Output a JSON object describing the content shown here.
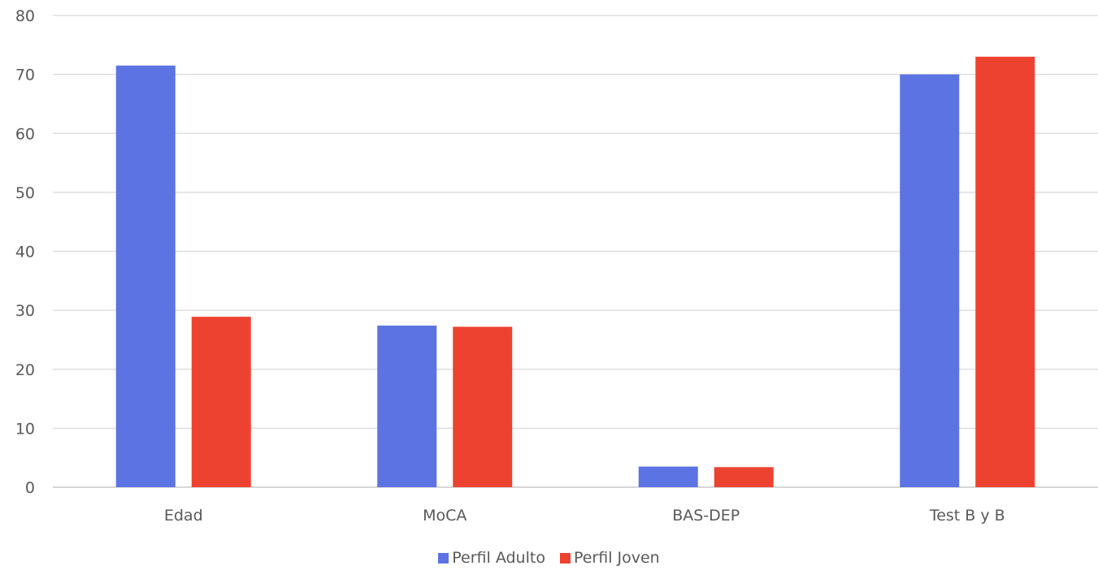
{
  "chart_data": {
    "type": "bar",
    "title": "",
    "xlabel": "",
    "ylabel": "",
    "categories": [
      "Edad",
      "MoCA",
      "BAS-DEP",
      "Test B y B"
    ],
    "series": [
      {
        "name": "Perfil Adulto",
        "color": "#5B73E3",
        "values": [
          71.5,
          27.4,
          3.5,
          70.0
        ]
      },
      {
        "name": "Perfil Joven",
        "color": "#EE4230",
        "values": [
          28.9,
          27.2,
          3.4,
          73.0
        ]
      }
    ],
    "ylim": [
      0,
      80
    ],
    "yticks": [
      "0",
      "10",
      "20",
      "30",
      "40",
      "50",
      "60",
      "70",
      "80"
    ],
    "grid": true,
    "legend_position": "bottom"
  }
}
